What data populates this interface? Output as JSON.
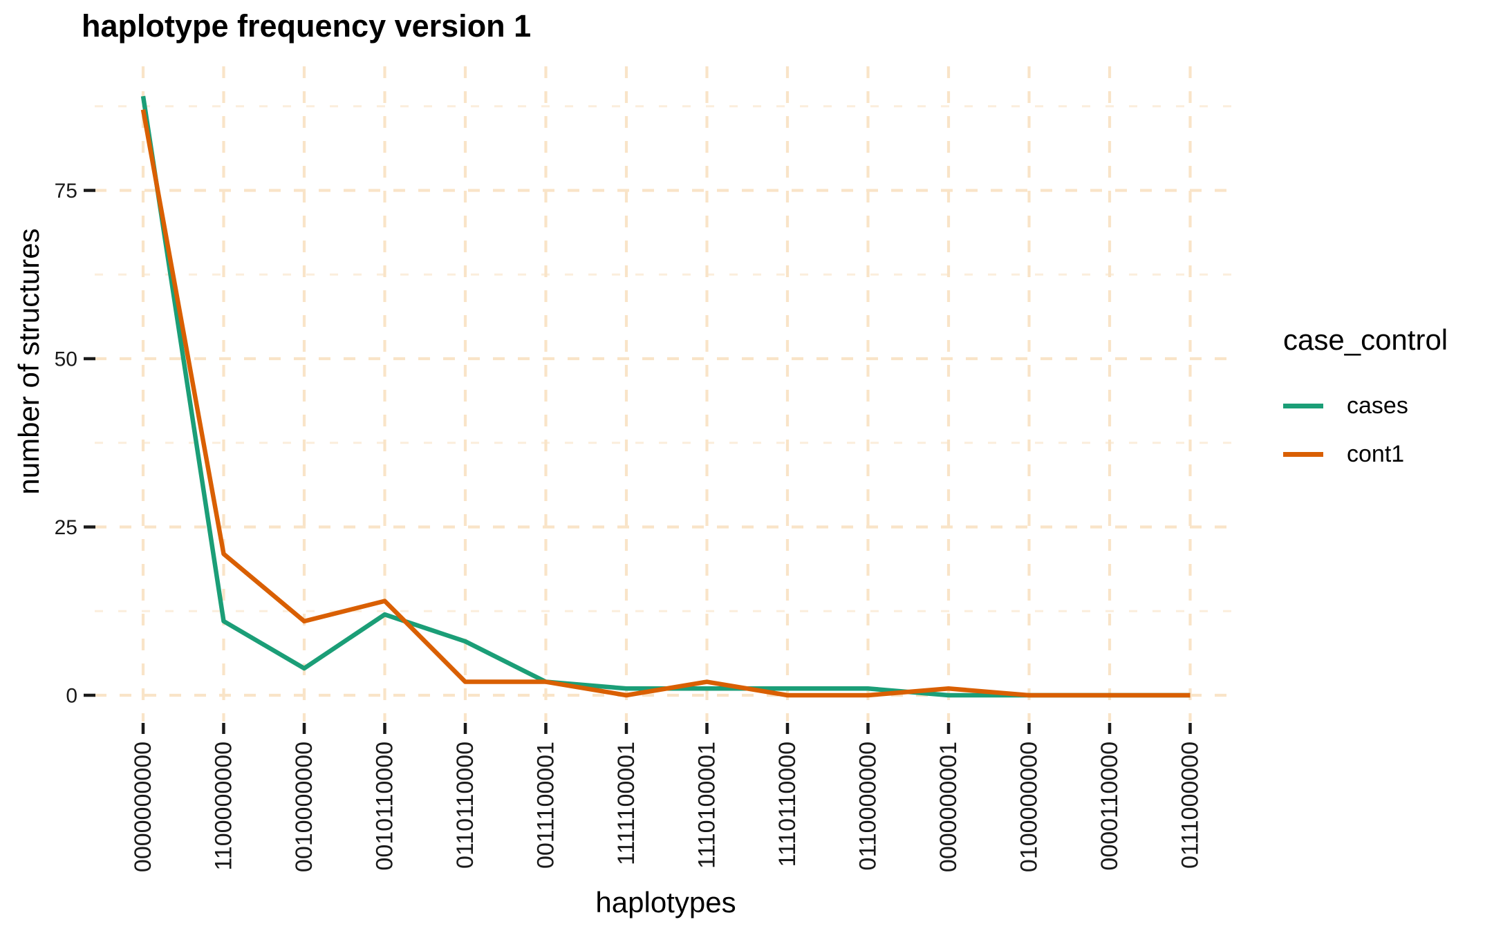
{
  "title": "haplotype frequency version 1",
  "legend": {
    "title": "case_control",
    "items": [
      {
        "label": "cases",
        "color": "#1B9E77"
      },
      {
        "label": "cont1",
        "color": "#D95F02"
      }
    ]
  },
  "chart_data": {
    "type": "line",
    "title": "haplotype frequency version 1",
    "xlabel": "haplotypes",
    "ylabel": "number of structures",
    "categories": [
      "0000000000",
      "1100000000",
      "0010000000",
      "0010110000",
      "0110110000",
      "0011100001",
      "1111100001",
      "1110100001",
      "1110110000",
      "0110000000",
      "0000000001",
      "0100000000",
      "0000110000",
      "0111000000"
    ],
    "series": [
      {
        "name": "cases",
        "color": "#1B9E77",
        "values": [
          89,
          11,
          4,
          12,
          8,
          2,
          1,
          1,
          1,
          1,
          0,
          0,
          0,
          0
        ]
      },
      {
        "name": "cont1",
        "color": "#D95F02",
        "values": [
          87,
          21,
          11,
          14,
          2,
          2,
          0,
          2,
          0,
          0,
          1,
          0,
          0,
          0
        ]
      }
    ],
    "yticks": [
      0,
      25,
      50,
      75
    ],
    "yminor": [
      12.5,
      37.5,
      62.5,
      87.5
    ],
    "ylim": [
      -3.8,
      93.4
    ],
    "grid": {
      "major_color": "#F9E4C8",
      "minor_color": "#FBEEDC",
      "style": "dashed"
    },
    "axis_tick_color": "#1a1a1a",
    "legend_position": "right",
    "background": "#FFFFFF"
  }
}
